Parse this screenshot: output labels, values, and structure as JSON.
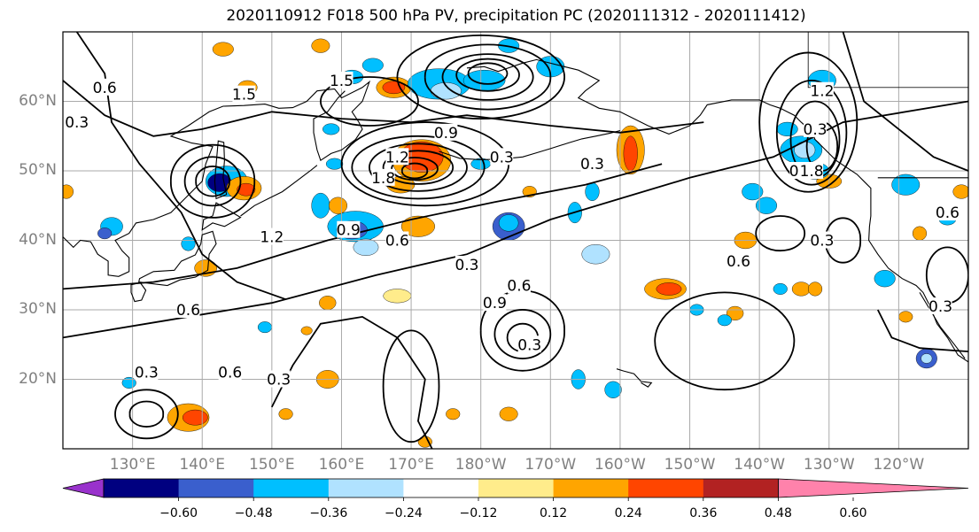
{
  "title": "2020110912 F018 500 hPa PV, precipitation PC (2020111312 - 2020111412)",
  "map": {
    "projection": "cylindrical",
    "lon_range_degE": [
      120,
      250
    ],
    "lat_range_degN": [
      10,
      70
    ],
    "grid": true,
    "lat_ticks": [
      "60°N",
      "50°N",
      "40°N",
      "30°N",
      "20°N"
    ],
    "lon_ticks": [
      "130°E",
      "140°E",
      "150°E",
      "160°E",
      "170°E",
      "180°W",
      "170°W",
      "160°W",
      "150°W",
      "140°W",
      "130°W",
      "120°W"
    ],
    "pv_contour_labels": [
      "0.3",
      "0.6",
      "0.9",
      "1.2",
      "1.5",
      "1.8",
      "0.3",
      "0.6",
      "0.9",
      "1.2",
      "0.3",
      "0.6",
      "0.3",
      "0.6",
      "0.3",
      "0.9",
      "0.3",
      "0.3",
      "0.6",
      "0.3",
      "0.6",
      "1.2",
      "1.8",
      "0.3",
      "0.6",
      "0.3",
      "0.3",
      "1.5"
    ]
  },
  "colorbar": {
    "ticks": [
      "−0.60",
      "−0.48",
      "−0.36",
      "−0.24",
      "−0.12",
      "0.12",
      "0.24",
      "0.36",
      "0.48",
      "0.60"
    ],
    "colors": [
      "#9932cc",
      "#000080",
      "#3a5fcd",
      "#00bfff",
      "#b0e2ff",
      "#ffffff",
      "#ffec8b",
      "#ffa500",
      "#ff4500",
      "#b22222",
      "#ff82ab"
    ],
    "extend": "both"
  }
}
